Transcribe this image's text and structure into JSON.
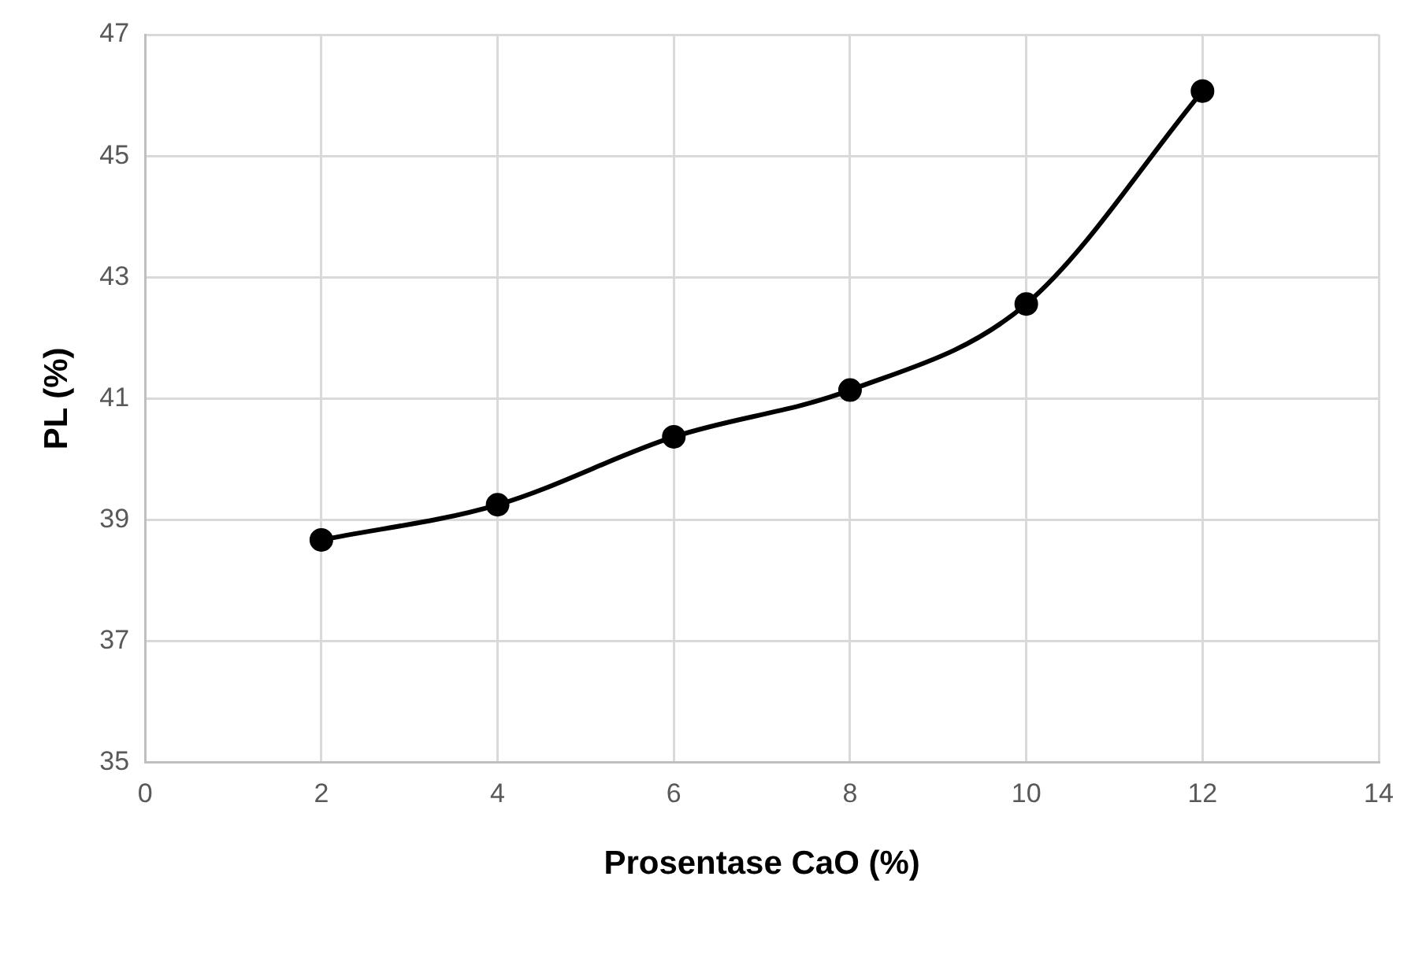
{
  "chart_data": {
    "type": "line",
    "xlabel": "Prosentase CaO (%)",
    "ylabel": "PL (%)",
    "x": [
      2,
      4,
      6,
      8,
      10,
      12
    ],
    "series": [
      {
        "color": "#000000",
        "values": [
          38.67,
          39.25,
          40.37,
          41.14,
          42.56,
          46.07
        ]
      }
    ],
    "xlim": [
      0,
      14
    ],
    "xticks": [
      0,
      2,
      4,
      6,
      8,
      10,
      12,
      14
    ],
    "ylim": [
      35,
      47
    ],
    "yticks": [
      35,
      37,
      39,
      41,
      43,
      45,
      47
    ],
    "grid": true,
    "legend": false,
    "marker": "circle",
    "line_style": "solid"
  }
}
